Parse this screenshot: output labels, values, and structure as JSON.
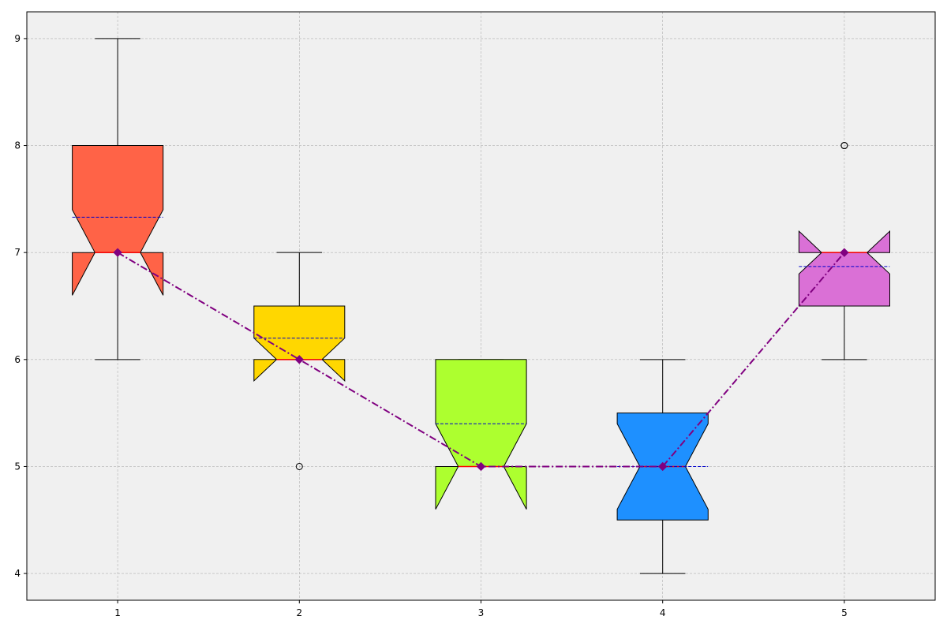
{
  "chart_data": {
    "type": "boxplot",
    "title": "",
    "xlabel": "",
    "ylabel": "",
    "categories": [
      "1",
      "2",
      "3",
      "4",
      "5"
    ],
    "x_ticks": [
      "1",
      "2",
      "3",
      "4",
      "5"
    ],
    "y_ticks": [
      "4",
      "5",
      "6",
      "7",
      "8",
      "9"
    ],
    "xlim": [
      0.5,
      5.5
    ],
    "ylim": [
      3.75,
      9.25
    ],
    "grid": true,
    "notched": true,
    "boxes": [
      {
        "label": "1",
        "whisker_low": 6,
        "q1": 7,
        "notch_low": 6.6,
        "median": 7,
        "notch_high": 7.4,
        "q3": 8,
        "whisker_high": 9,
        "mean": 7.33,
        "fliers": [],
        "color": "#ff6347"
      },
      {
        "label": "2",
        "whisker_low": 6,
        "q1": 6,
        "notch_low": 5.8,
        "median": 6,
        "notch_high": 6.2,
        "q3": 6.5,
        "whisker_high": 7,
        "mean": 6.2,
        "fliers": [
          5
        ],
        "color": "#ffd700"
      },
      {
        "label": "3",
        "whisker_low": 5,
        "q1": 5,
        "notch_low": 4.6,
        "median": 5,
        "notch_high": 5.4,
        "q3": 6,
        "whisker_high": 6,
        "mean": 5.4,
        "fliers": [],
        "color": "#adff2f"
      },
      {
        "label": "4",
        "whisker_low": 4,
        "q1": 4.5,
        "notch_low": 4.6,
        "median": 5,
        "notch_high": 5.4,
        "q3": 5.5,
        "whisker_high": 6,
        "mean": 5.0,
        "fliers": [],
        "color": "#1e90ff"
      },
      {
        "label": "5",
        "whisker_low": 6,
        "q1": 6.5,
        "notch_low": 6.8,
        "median": 7,
        "notch_high": 7.2,
        "q3": 7,
        "whisker_high": 7,
        "mean": 6.87,
        "fliers": [
          8,
          8
        ],
        "color": "#da70d6"
      }
    ],
    "median_line": {
      "x": [
        1,
        2,
        3,
        4,
        5
      ],
      "y": [
        7,
        6,
        5,
        5,
        7
      ],
      "color": "#800080",
      "style": "dash-dot",
      "marker": "diamond"
    },
    "mean_line_color": "#0000cd",
    "median_mark_color": "#ff0000",
    "background": "#f0f0f0",
    "grid_color": "#b0b0b0"
  }
}
